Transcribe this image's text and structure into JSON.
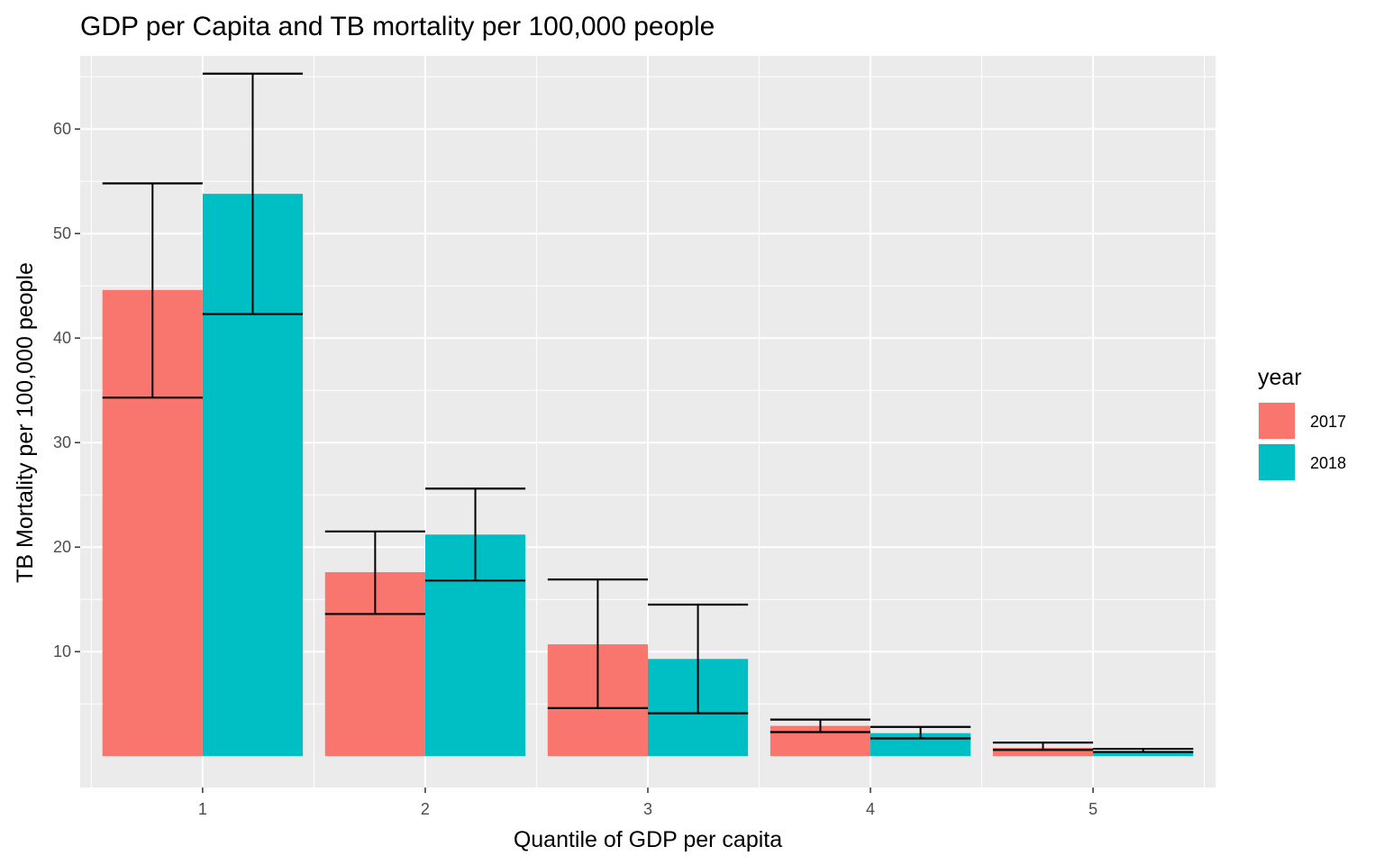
{
  "chart_data": {
    "type": "bar",
    "title": "GDP per Capita and TB mortality per 100,000 people",
    "xlabel": "Quantile of GDP per capita",
    "ylabel": "TB Mortality per 100,000 people",
    "categories": [
      "1",
      "2",
      "3",
      "4",
      "5"
    ],
    "ylim": [
      -3,
      67
    ],
    "yticks": [
      10,
      20,
      30,
      40,
      50,
      60
    ],
    "grid": true,
    "legend": {
      "title": "year",
      "position": "right"
    },
    "series": [
      {
        "name": "2017",
        "color": "#F8766D",
        "values": [
          44.6,
          17.6,
          10.7,
          2.9,
          0.8
        ],
        "error_low": [
          34.3,
          13.6,
          4.6,
          2.3,
          0.6
        ],
        "error_high": [
          54.8,
          21.5,
          16.9,
          3.5,
          1.3
        ]
      },
      {
        "name": "2018",
        "color": "#00BFC4",
        "values": [
          53.8,
          21.2,
          9.3,
          2.2,
          0.5
        ],
        "error_low": [
          42.3,
          16.8,
          4.1,
          1.7,
          0.4
        ],
        "error_high": [
          65.3,
          25.6,
          14.5,
          2.8,
          0.7
        ]
      }
    ]
  }
}
